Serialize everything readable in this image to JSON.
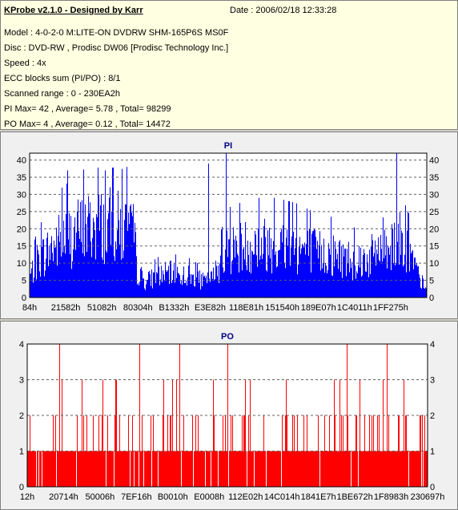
{
  "info": {
    "title": "KProbe v2.1.0 - Designed by Karr",
    "date": "Date : 2006/02/18 12:33:28",
    "lines": [
      "Model : 4-0-2-0 M:LITE-ON DVDRW SHM-165P6S MS0F",
      "Disc : DVD-RW , Prodisc DW06 [Prodisc Technology Inc.]",
      "Speed : 4x",
      "ECC blocks sum (PI/PO) : 8/1",
      "Scanned range : 0 - 230EA2h",
      "PI Max= 42 , Average= 5.78 , Total= 98299",
      "PO Max= 4 , Average= 0.12 , Total= 14472"
    ]
  },
  "colors": {
    "pi": "#0000ff",
    "po": "#ff0000",
    "plot_bg": "#ffffff",
    "panel_bg": "#f0f0f0",
    "info_bg": "#ffffe1"
  },
  "chart_data": [
    {
      "type": "bar",
      "title": "PI",
      "ylim": [
        0,
        42
      ],
      "yticks": [
        0,
        5,
        10,
        15,
        20,
        25,
        30,
        35,
        40
      ],
      "xtick_labels": [
        "84h",
        "21582h",
        "51082h",
        "80304h",
        "B1332h",
        "E3E82h",
        "118E81h",
        "151540h",
        "189E07h",
        "1C4011h",
        "1FF275h"
      ],
      "series": [
        {
          "color": "#0000ff",
          "envelope": [
            [
              0.0,
              8
            ],
            [
              0.02,
              14
            ],
            [
              0.05,
              18
            ],
            [
              0.08,
              22
            ],
            [
              0.11,
              24
            ],
            [
              0.14,
              26
            ],
            [
              0.17,
              27
            ],
            [
              0.2,
              27
            ],
            [
              0.23,
              26
            ],
            [
              0.255,
              24
            ],
            [
              0.27,
              10
            ],
            [
              0.29,
              6
            ],
            [
              0.32,
              8
            ],
            [
              0.35,
              9
            ],
            [
              0.4,
              8
            ],
            [
              0.44,
              6
            ],
            [
              0.46,
              7
            ],
            [
              0.48,
              13
            ],
            [
              0.5,
              18
            ],
            [
              0.53,
              19
            ],
            [
              0.57,
              20
            ],
            [
              0.62,
              20
            ],
            [
              0.67,
              19
            ],
            [
              0.72,
              17
            ],
            [
              0.77,
              16
            ],
            [
              0.82,
              14
            ],
            [
              0.86,
              15
            ],
            [
              0.89,
              20
            ],
            [
              0.93,
              22
            ],
            [
              0.96,
              16
            ],
            [
              0.98,
              8
            ],
            [
              1.0,
              3
            ]
          ],
          "peaks": [
            [
              0.095,
              37
            ],
            [
              0.19,
              37
            ],
            [
              0.245,
              38
            ],
            [
              0.45,
              39
            ],
            [
              0.495,
              42
            ],
            [
              0.925,
              42
            ]
          ]
        }
      ]
    },
    {
      "type": "bar",
      "title": "PO",
      "ylim": [
        0,
        4
      ],
      "yticks": [
        0,
        1,
        2,
        3,
        4
      ],
      "xtick_labels": [
        "12h",
        "20714h",
        "50006h",
        "7EF16h",
        "B0010h",
        "E0008h",
        "112E02h",
        "14C014h",
        "1841E7h",
        "1BE672h",
        "1F8983h",
        "230697h"
      ],
      "series": [
        {
          "color": "#ff0000",
          "peaks": [
            [
              0.08,
              4
            ],
            [
              0.28,
              4
            ],
            [
              0.38,
              4
            ],
            [
              0.5,
              4
            ],
            [
              0.8,
              4
            ],
            [
              0.9,
              4
            ]
          ]
        }
      ]
    }
  ]
}
